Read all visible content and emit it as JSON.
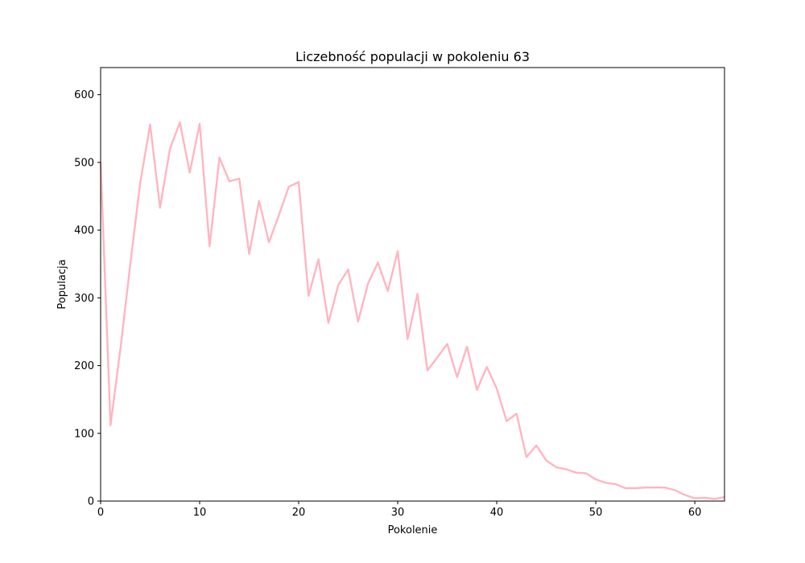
{
  "chart_data": {
    "type": "line",
    "title": "Liczebność populacji w pokoleniu 63",
    "xlabel": "Pokolenie",
    "ylabel": "Populacja",
    "xlim": [
      0,
      63
    ],
    "ylim": [
      0,
      640
    ],
    "xticks": [
      0,
      10,
      20,
      30,
      40,
      50,
      60
    ],
    "yticks": [
      0,
      100,
      200,
      300,
      400,
      500,
      600
    ],
    "grid": false,
    "series": [
      {
        "color": "#ffb6c1",
        "x": [
          0,
          1,
          2,
          3,
          4,
          5,
          6,
          7,
          8,
          9,
          10,
          11,
          12,
          13,
          14,
          15,
          16,
          17,
          18,
          19,
          20,
          21,
          22,
          23,
          24,
          25,
          26,
          27,
          28,
          29,
          30,
          31,
          32,
          33,
          34,
          35,
          36,
          37,
          38,
          39,
          40,
          41,
          42,
          43,
          44,
          45,
          46,
          47,
          48,
          49,
          50,
          51,
          52,
          53,
          54,
          55,
          56,
          57,
          58,
          59,
          60,
          61,
          62,
          63
        ],
        "y": [
          500,
          112,
          225,
          350,
          470,
          556,
          433,
          520,
          559,
          485,
          557,
          376,
          507,
          472,
          476,
          365,
          443,
          382,
          422,
          464,
          471,
          303,
          357,
          263,
          319,
          342,
          265,
          321,
          352,
          310,
          369,
          239,
          306,
          193,
          212,
          232,
          183,
          228,
          164,
          198,
          166,
          118,
          129,
          65,
          82,
          60,
          50,
          47,
          42,
          41,
          32,
          27,
          25,
          19,
          19,
          20,
          20,
          20,
          16,
          9,
          4,
          5,
          3,
          6
        ]
      }
    ]
  }
}
